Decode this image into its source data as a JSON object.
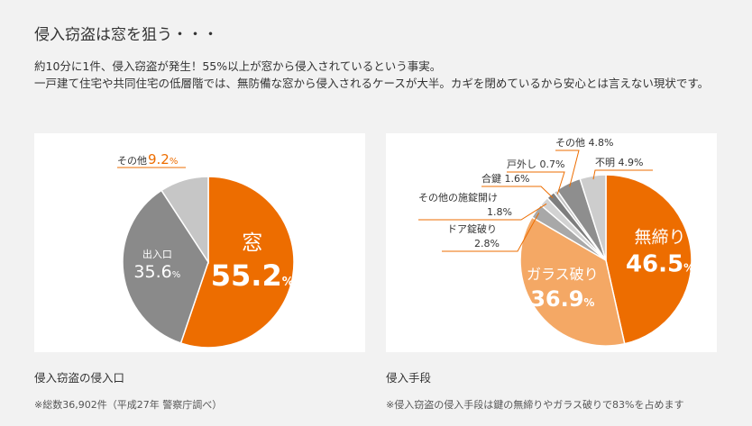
{
  "heading": "侵入窃盗は窓を狙う・・・",
  "intro": {
    "line1": "約10分に1件、侵入窃盗が発生！55%以上が窓から侵入されているという事実。",
    "line2": "一戸建て住宅や共同住宅の低層階では、無防備な窓から侵入されるケースが大半。カギを閉めているから安心とは言えない現状です。"
  },
  "left_block": {
    "caption": "侵入窃盗の侵入口",
    "note": "※総数36,902件（平成27年 警察庁調べ）"
  },
  "right_block": {
    "caption": "侵入手段",
    "note": "※侵入窃盗の侵入手段は鍵の無締りやガラス破りで83%を占めます"
  },
  "chart_data": [
    {
      "type": "pie",
      "title": "侵入窃盗の侵入口",
      "slices": [
        {
          "label": "窓",
          "value": 55.2,
          "value_text": "55.2",
          "unit": "%",
          "color": "#ed6d00"
        },
        {
          "label": "出入口",
          "value": 35.6,
          "value_text": "35.6",
          "unit": "%",
          "color": "#8a8a8a"
        },
        {
          "label": "その他",
          "value": 9.2,
          "value_text": "9.2",
          "unit": "%",
          "color": "#c6c6c6"
        }
      ]
    },
    {
      "type": "pie",
      "title": "侵入手段",
      "slices": [
        {
          "label": "無締り",
          "value": 46.5,
          "value_text": "46.5",
          "unit": "%",
          "color": "#ed6d00"
        },
        {
          "label": "ガラス破り",
          "value": 36.9,
          "value_text": "36.9",
          "unit": "%",
          "color": "#f4a865"
        },
        {
          "label": "ドア錠破り",
          "value": 2.8,
          "value_text": "2.8%",
          "unit": "",
          "color": "#a8a8a8"
        },
        {
          "label": "その他の施錠開け",
          "value": 1.8,
          "value_text": "1.8%",
          "unit": "",
          "color": "#d2d2d2"
        },
        {
          "label": "合鍵",
          "value": 1.6,
          "value_text": "1.6%",
          "unit": "",
          "color": "#7e7e7e"
        },
        {
          "label": "戸外し",
          "value": 0.7,
          "value_text": "0.7%",
          "unit": "",
          "color": "#c4c4c4"
        },
        {
          "label": "その他",
          "value": 4.8,
          "value_text": "4.8%",
          "unit": "",
          "color": "#8e8e8e"
        },
        {
          "label": "不明",
          "value": 4.9,
          "value_text": "4.9%",
          "unit": "",
          "color": "#cdcdcd"
        }
      ]
    }
  ]
}
